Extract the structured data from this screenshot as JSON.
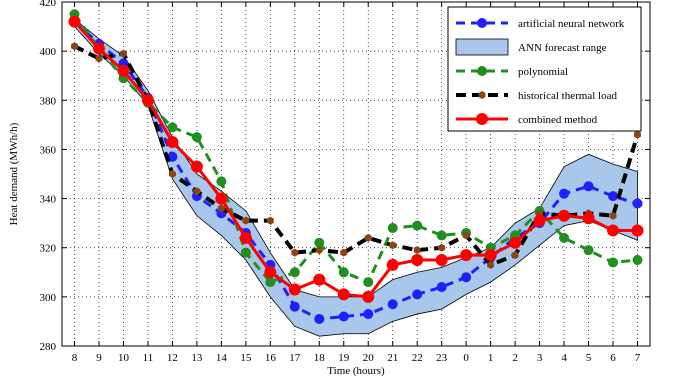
{
  "chart_data": {
    "type": "line",
    "xlabel": "Time (hours)",
    "ylabel": "Heat demand (MWh/h)",
    "categories": [
      "8",
      "9",
      "10",
      "11",
      "12",
      "13",
      "14",
      "15",
      "16",
      "17",
      "18",
      "19",
      "20",
      "21",
      "22",
      "23",
      "0",
      "1",
      "2",
      "3",
      "4",
      "5",
      "6",
      "7"
    ],
    "ylim": [
      280,
      420
    ],
    "yticks": [
      280,
      300,
      320,
      340,
      360,
      380,
      400,
      420
    ],
    "grid": true,
    "legend_position": "top-right",
    "forecast_range": {
      "name": "ANN forecast range",
      "lower": [
        410,
        399,
        390,
        378,
        348,
        333,
        325,
        315,
        300,
        288,
        284,
        285,
        285,
        290,
        293,
        295,
        301,
        306,
        313,
        321,
        329,
        331,
        327,
        323
      ],
      "upper": [
        413,
        405,
        398,
        384,
        365,
        350,
        343,
        335,
        318,
        303,
        300,
        300,
        300,
        307,
        310,
        312,
        316,
        320,
        330,
        336,
        353,
        358,
        354,
        351
      ]
    },
    "series": [
      {
        "name": "artificial neural network",
        "values": [
          412,
          403,
          395,
          381,
          357,
          341,
          334,
          326,
          313,
          296,
          291,
          292,
          293,
          297,
          301,
          304,
          308,
          316,
          324,
          330,
          342,
          345,
          341,
          338
        ]
      },
      {
        "name": "polynomial",
        "values": [
          415,
          401,
          389,
          379,
          369,
          365,
          347,
          318,
          306,
          310,
          322,
          310,
          306,
          328,
          329,
          325,
          326,
          320,
          325,
          335,
          324,
          319,
          314,
          315
        ]
      },
      {
        "name": "historical thermal load",
        "values": [
          402,
          397,
          399,
          380,
          350,
          343,
          336,
          331,
          331,
          318,
          319,
          318,
          324,
          321,
          319,
          320,
          325,
          313,
          317,
          334,
          333,
          334,
          333,
          366
        ]
      },
      {
        "name": "combined method",
        "values": [
          412,
          401,
          392,
          380,
          363,
          353,
          340,
          324,
          310,
          303,
          307,
          301,
          300,
          313,
          315,
          315,
          317,
          317,
          322,
          331,
          333,
          332,
          327,
          327
        ]
      }
    ],
    "colors": {
      "artificial neural network": "#1f1fff",
      "ANN forecast range": "#a8c7ea",
      "polynomial": "#1f8f1f",
      "historical thermal load": "#000000",
      "historical thermal load marker": "#8b4513",
      "combined method": "#ff0000"
    }
  }
}
